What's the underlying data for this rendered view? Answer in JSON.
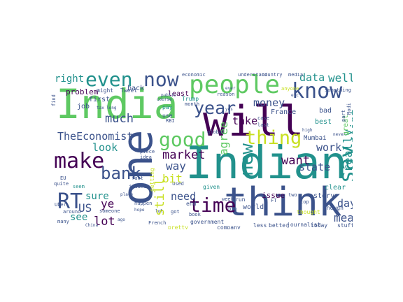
{
  "colors": {
    "purple": "#440154",
    "indigo": "#3b528b",
    "teal": "#21918c",
    "green": "#5ec962",
    "yellow": "#c8e020"
  },
  "words": [
    {
      "text": "India",
      "color": "green"
    },
    {
      "text": "will",
      "color": "purple"
    },
    {
      "text": "Indian",
      "color": "teal"
    },
    {
      "text": "think",
      "color": "indigo"
    },
    {
      "text": "one",
      "color": "indigo"
    },
    {
      "text": "people",
      "color": "green"
    },
    {
      "text": "know",
      "color": "indigo"
    },
    {
      "text": "even",
      "color": "teal"
    },
    {
      "text": "now",
      "color": "indigo"
    },
    {
      "text": "year",
      "color": "indigo"
    },
    {
      "text": "good",
      "color": "green"
    },
    {
      "text": "thing",
      "color": "yellow"
    },
    {
      "text": "make",
      "color": "purple"
    },
    {
      "text": "bank",
      "color": "indigo"
    },
    {
      "text": "time",
      "color": "purple"
    },
    {
      "text": "RT",
      "color": "indigo"
    },
    {
      "text": "say",
      "color": "teal"
    },
    {
      "text": "new",
      "color": "teal"
    },
    {
      "text": "TheEconomist",
      "color": "indigo"
    },
    {
      "text": "right",
      "color": "teal"
    },
    {
      "text": "much",
      "color": "indigo"
    },
    {
      "text": "still",
      "color": "yellow"
    },
    {
      "text": "market",
      "color": "purple"
    },
    {
      "text": "need",
      "color": "indigo"
    },
    {
      "text": "want",
      "color": "purple"
    },
    {
      "text": "data",
      "color": "teal"
    },
    {
      "text": "well",
      "color": "teal"
    },
    {
      "text": "take",
      "color": "purple"
    },
    {
      "text": "work",
      "color": "indigo"
    },
    {
      "text": "really",
      "color": "teal"
    },
    {
      "text": "mean",
      "color": "indigo"
    },
    {
      "text": "day",
      "color": "indigo"
    },
    {
      "text": "lot",
      "color": "purple"
    },
    {
      "text": "look",
      "color": "teal"
    },
    {
      "text": "way",
      "color": "indigo"
    },
    {
      "text": "bit",
      "color": "yellow"
    },
    {
      "text": "money",
      "color": "indigo"
    },
    {
      "text": "point",
      "color": "teal"
    },
    {
      "text": "agree",
      "color": "green"
    },
    {
      "text": "state",
      "color": "indigo"
    },
    {
      "text": "US",
      "color": "indigo"
    },
    {
      "text": "ye",
      "color": "purple"
    },
    {
      "text": "sure",
      "color": "teal"
    },
    {
      "text": "see",
      "color": "teal"
    },
    {
      "text": "problem",
      "color": "purple"
    },
    {
      "text": "job",
      "color": "indigo"
    },
    {
      "text": "first",
      "color": "indigo"
    },
    {
      "text": "back",
      "color": "indigo"
    },
    {
      "text": "least",
      "color": "purple"
    },
    {
      "text": "world",
      "color": "indigo"
    },
    {
      "text": "issue",
      "color": "purple"
    },
    {
      "text": "story",
      "color": "indigo"
    },
    {
      "text": "clear",
      "color": "teal"
    },
    {
      "text": "bad",
      "color": "indigo"
    },
    {
      "text": "best",
      "color": "teal"
    },
    {
      "text": "great",
      "color": "green"
    },
    {
      "text": "France",
      "color": "indigo"
    },
    {
      "text": "Mumbai",
      "color": "indigo"
    },
    {
      "text": "government",
      "color": "indigo"
    },
    {
      "text": "company",
      "color": "indigo"
    },
    {
      "text": "companies",
      "color": "indigo"
    },
    {
      "text": "journalist",
      "color": "indigo"
    },
    {
      "text": "today",
      "color": "indigo"
    },
    {
      "text": "stuff",
      "color": "indigo"
    },
    {
      "text": "less",
      "color": "indigo"
    },
    {
      "text": "better",
      "color": "indigo"
    },
    {
      "text": "thought",
      "color": "yellow"
    },
    {
      "text": "though",
      "color": "indigo"
    },
    {
      "text": "pretty",
      "color": "yellow"
    },
    {
      "text": "French",
      "color": "indigo"
    },
    {
      "text": "someone",
      "color": "indigo"
    },
    {
      "text": "quite",
      "color": "indigo"
    },
    {
      "text": "around",
      "color": "indigo"
    },
    {
      "text": "Modi",
      "color": "indigo"
    },
    {
      "text": "Trump",
      "color": "teal"
    },
    {
      "text": "month",
      "color": "indigo"
    },
    {
      "text": "reason",
      "color": "indigo"
    },
    {
      "text": "global",
      "color": "indigo"
    },
    {
      "text": "piece",
      "color": "indigo"
    },
    {
      "text": "idea",
      "color": "indigo"
    },
    {
      "text": "use",
      "color": "indigo"
    },
    {
      "text": "pay",
      "color": "teal"
    },
    {
      "text": "week",
      "color": "indigo"
    },
    {
      "text": "end",
      "color": "indigo"
    },
    {
      "text": "run",
      "color": "indigo"
    },
    {
      "text": "given",
      "color": "teal"
    },
    {
      "text": "getting",
      "color": "yellow"
    },
    {
      "text": "income",
      "color": "indigo"
    },
    {
      "text": "happen",
      "color": "indigo"
    },
    {
      "text": "might",
      "color": "indigo"
    },
    {
      "text": "Tweet",
      "color": "indigo"
    },
    {
      "text": "economic",
      "color": "indigo"
    },
    {
      "text": "understand",
      "color": "indigo"
    },
    {
      "text": "country",
      "color": "indigo"
    },
    {
      "text": "media",
      "color": "indigo"
    },
    {
      "text": "anyone",
      "color": "yellow"
    },
    {
      "text": "something",
      "color": "indigo"
    },
    {
      "text": "many",
      "color": "indigo"
    },
    {
      "text": "China",
      "color": "indigo"
    },
    {
      "text": "EU",
      "color": "indigo"
    },
    {
      "text": "find",
      "color": "indigo"
    },
    {
      "text": "case",
      "color": "indigo"
    },
    {
      "text": "last",
      "color": "indigo"
    },
    {
      "text": "part",
      "color": "indigo"
    },
    {
      "text": "top",
      "color": "indigo"
    },
    {
      "text": "big",
      "color": "indigo"
    },
    {
      "text": "seem",
      "color": "teal"
    },
    {
      "text": "Uber",
      "color": "indigo"
    },
    {
      "text": "used",
      "color": "indigo"
    },
    {
      "text": "book",
      "color": "indigo"
    },
    {
      "text": "got",
      "color": "indigo"
    },
    {
      "text": "fact",
      "color": "indigo"
    },
    {
      "text": "two",
      "color": "indigo"
    },
    {
      "text": "public",
      "color": "indigo"
    },
    {
      "text": "course",
      "color": "indigo"
    },
    {
      "text": "ever",
      "color": "indigo"
    },
    {
      "text": "lol",
      "color": "indigo"
    },
    {
      "text": "yes",
      "color": "indigo"
    },
    {
      "text": "hope",
      "color": "indigo"
    },
    {
      "text": "high",
      "color": "indigo"
    },
    {
      "text": "tax",
      "color": "indigo"
    },
    {
      "text": "RBI",
      "color": "indigo"
    },
    {
      "text": "FT",
      "color": "indigo"
    },
    {
      "text": "long",
      "color": "indigo"
    },
    {
      "text": "place",
      "color": "indigo"
    },
    {
      "text": "ago",
      "color": "indigo"
    },
    {
      "text": "never",
      "color": "indigo"
    },
    {
      "text": "etc",
      "color": "indigo"
    }
  ]
}
